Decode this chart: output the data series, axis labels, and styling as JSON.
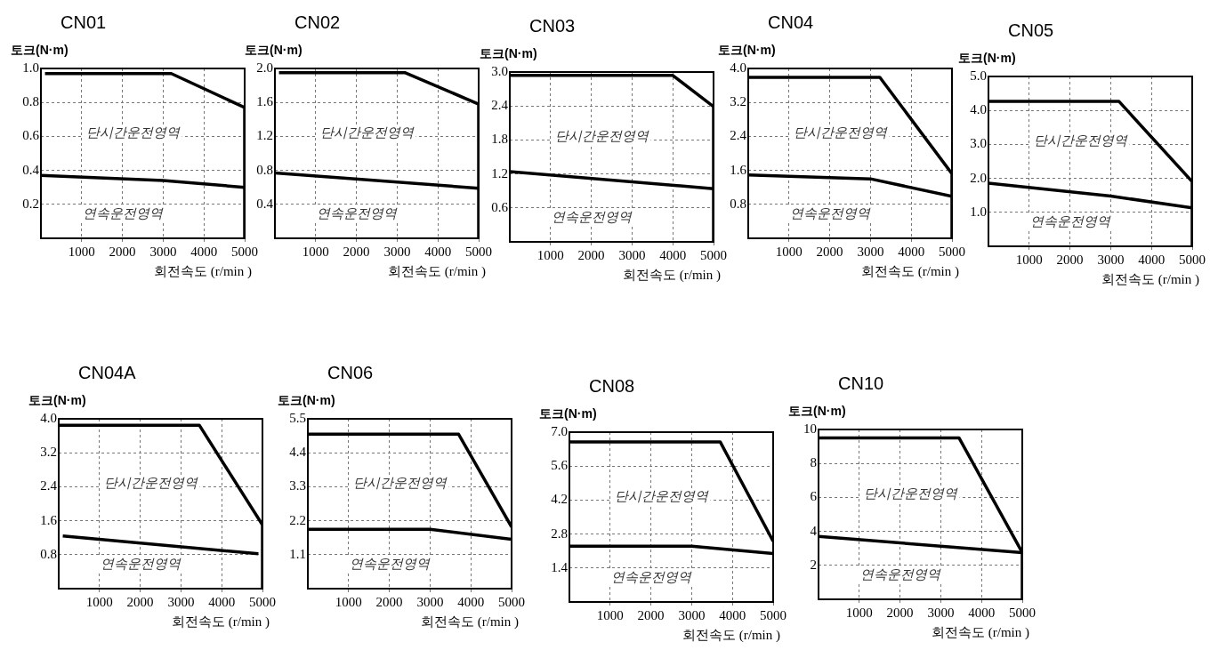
{
  "chart_data": [
    {
      "type": "line",
      "title": "CN01",
      "ylabel": "토크(N·m)",
      "xlabel": "회전속도 (r/min )",
      "xlim": [
        0,
        5000
      ],
      "xticks": [
        1000,
        2000,
        3000,
        4000,
        5000
      ],
      "ylim": [
        0,
        1.0
      ],
      "yticks": [
        {
          "value": 0.2,
          "label": "0.2"
        },
        {
          "value": 0.4,
          "label": "0.4"
        },
        {
          "value": 0.6,
          "label": "0.6"
        },
        {
          "value": 0.8,
          "label": "0.8"
        },
        {
          "value": 1.0,
          "label": "1.0"
        }
      ],
      "grid": true,
      "annotations": [
        "단시간운전영역",
        "연속운전영역"
      ],
      "series": [
        {
          "color": "#000000",
          "x": [
            100,
            3200,
            5000,
            5000
          ],
          "values": [
            0.97,
            0.97,
            0.77,
            0
          ]
        },
        {
          "color": "#000000",
          "x": [
            0,
            3000,
            5000
          ],
          "values": [
            0.37,
            0.34,
            0.3
          ]
        }
      ]
    },
    {
      "type": "line",
      "title": "CN02",
      "ylabel": "토크(N·m)",
      "xlabel": "회전속도 (r/min )",
      "xlim": [
        0,
        5000
      ],
      "xticks": [
        1000,
        2000,
        3000,
        4000,
        5000
      ],
      "ylim": [
        0,
        2.0
      ],
      "yticks": [
        {
          "value": 0.4,
          "label": "0.4"
        },
        {
          "value": 0.8,
          "label": "0.8"
        },
        {
          "value": 1.2,
          "label": "1.2"
        },
        {
          "value": 1.6,
          "label": "1.6"
        },
        {
          "value": 2.0,
          "label": "2.0"
        }
      ],
      "grid": true,
      "annotations": [
        "단시간운전영역",
        "연속운전영역"
      ],
      "series": [
        {
          "color": "#000000",
          "x": [
            100,
            3200,
            5000,
            5000
          ],
          "values": [
            1.95,
            1.95,
            1.58,
            0
          ]
        },
        {
          "color": "#000000",
          "x": [
            0,
            5000
          ],
          "values": [
            0.77,
            0.59
          ]
        }
      ]
    },
    {
      "type": "line",
      "title": "CN03",
      "ylabel": "토크(N·m)",
      "xlabel": "회전속도 (r/min )",
      "xlim": [
        0,
        5000
      ],
      "xticks": [
        1000,
        2000,
        3000,
        4000,
        5000
      ],
      "ylim": [
        0,
        3.0
      ],
      "yticks": [
        {
          "value": 0.6,
          "label": "0.6"
        },
        {
          "value": 1.2,
          "label": "1.2"
        },
        {
          "value": 1.8,
          "label": "1.8"
        },
        {
          "value": 2.4,
          "label": "2.4"
        },
        {
          "value": 3.0,
          "label": "3.0"
        }
      ],
      "grid": true,
      "annotations": [
        "단시간운전영역",
        "연속운전영역"
      ],
      "series": [
        {
          "color": "#000000",
          "x": [
            0,
            4000,
            5000,
            5000
          ],
          "values": [
            2.94,
            2.94,
            2.39,
            0
          ]
        },
        {
          "color": "#000000",
          "x": [
            0,
            5000
          ],
          "values": [
            1.24,
            0.94
          ]
        }
      ]
    },
    {
      "type": "line",
      "title": "CN04",
      "ylabel": "토크(N·m)",
      "xlabel": "회전속도 (r/min )",
      "xlim": [
        0,
        5000
      ],
      "xticks": [
        1000,
        2000,
        3000,
        4000,
        5000
      ],
      "ylim": [
        0,
        4.0
      ],
      "yticks": [
        {
          "value": 0.8,
          "label": "0.8"
        },
        {
          "value": 1.6,
          "label": "1.6"
        },
        {
          "value": 2.4,
          "label": "2.4"
        },
        {
          "value": 3.2,
          "label": "3.2"
        },
        {
          "value": 4.0,
          "label": "4.0"
        }
      ],
      "grid": true,
      "annotations": [
        "단시간운전영역",
        "연속운전영역"
      ],
      "series": [
        {
          "color": "#000000",
          "x": [
            0,
            3230,
            5000,
            5000
          ],
          "values": [
            3.79,
            3.79,
            1.52,
            0
          ]
        },
        {
          "color": "#000000",
          "x": [
            0,
            3000,
            5000
          ],
          "values": [
            1.49,
            1.4,
            0.99
          ]
        }
      ]
    },
    {
      "type": "line",
      "title": "CN05",
      "ylabel": "토크(N·m)",
      "xlabel": "회전속도 (r/min )",
      "xlim": [
        0,
        5000
      ],
      "xticks": [
        1000,
        2000,
        3000,
        4000,
        5000
      ],
      "ylim": [
        0,
        5.0
      ],
      "yticks": [
        {
          "value": 1.0,
          "label": "1.0"
        },
        {
          "value": 2.0,
          "label": "2.0"
        },
        {
          "value": 3.0,
          "label": "3.0"
        },
        {
          "value": 4.0,
          "label": "4.0"
        },
        {
          "value": 5.0,
          "label": "5.0"
        }
      ],
      "grid": true,
      "annotations": [
        "단시간운전영역",
        "연속운전영역"
      ],
      "series": [
        {
          "color": "#000000",
          "x": [
            0,
            3200,
            5000,
            5000
          ],
          "values": [
            4.27,
            4.27,
            1.9,
            0
          ]
        },
        {
          "color": "#000000",
          "x": [
            0,
            3000,
            5000
          ],
          "values": [
            1.86,
            1.48,
            1.13
          ]
        }
      ]
    },
    {
      "type": "line",
      "title": "CN04A",
      "ylabel": "토크(N·m)",
      "xlabel": "회전속도 (r/min )",
      "xlim": [
        0,
        5000
      ],
      "xticks": [
        1000,
        2000,
        3000,
        4000,
        5000
      ],
      "ylim": [
        0,
        4.0
      ],
      "yticks": [
        {
          "value": 0.8,
          "label": "0.8"
        },
        {
          "value": 1.6,
          "label": "1.6"
        },
        {
          "value": 2.4,
          "label": "2.4"
        },
        {
          "value": 3.2,
          "label": "3.2"
        },
        {
          "value": 4.0,
          "label": "4.0"
        }
      ],
      "grid": true,
      "annotations": [
        "단시간운전영역",
        "연속운전영역"
      ],
      "series": [
        {
          "color": "#000000",
          "x": [
            0,
            3450,
            5000,
            5000
          ],
          "values": [
            3.85,
            3.85,
            1.5,
            0
          ]
        },
        {
          "color": "#000000",
          "x": [
            100,
            4900
          ],
          "values": [
            1.24,
            0.82
          ]
        }
      ]
    },
    {
      "type": "line",
      "title": "CN06",
      "ylabel": "토크(N·m)",
      "xlabel": "회전속도 (r/min )",
      "xlim": [
        0,
        5000
      ],
      "xticks": [
        1000,
        2000,
        3000,
        4000,
        5000
      ],
      "ylim": [
        0,
        5.5
      ],
      "yticks": [
        {
          "value": 1.1,
          "label": "1.1"
        },
        {
          "value": 2.2,
          "label": "2.2"
        },
        {
          "value": 3.3,
          "label": "3.3"
        },
        {
          "value": 4.4,
          "label": "4.4"
        },
        {
          "value": 5.5,
          "label": "5.5"
        }
      ],
      "grid": true,
      "annotations": [
        "단시간운전영역",
        "연속운전영역"
      ],
      "series": [
        {
          "color": "#000000",
          "x": [
            0,
            3700,
            5000
          ],
          "values": [
            5.0,
            5.0,
            2.0
          ]
        },
        {
          "color": "#000000",
          "x": [
            0,
            3000,
            5000
          ],
          "values": [
            1.92,
            1.92,
            1.6
          ]
        }
      ]
    },
    {
      "type": "line",
      "title": "CN08",
      "ylabel": "토크(N·m)",
      "xlabel": "회전속도 (r/min )",
      "xlim": [
        0,
        5000
      ],
      "xticks": [
        1000,
        2000,
        3000,
        4000,
        5000
      ],
      "ylim": [
        0,
        7.0
      ],
      "yticks": [
        {
          "value": 1.4,
          "label": "1.4"
        },
        {
          "value": 2.8,
          "label": "2.8"
        },
        {
          "value": 4.2,
          "label": "4.2"
        },
        {
          "value": 5.6,
          "label": "5.6"
        },
        {
          "value": 7.0,
          "label": "7.0"
        }
      ],
      "grid": true,
      "annotations": [
        "단시간운전영역",
        "연속운전영역"
      ],
      "series": [
        {
          "color": "#000000",
          "x": [
            0,
            3700,
            5000
          ],
          "values": [
            6.6,
            6.6,
            2.5
          ]
        },
        {
          "color": "#000000",
          "x": [
            0,
            3000,
            5000
          ],
          "values": [
            2.3,
            2.3,
            2.0
          ]
        }
      ]
    },
    {
      "type": "line",
      "title": "CN10",
      "ylabel": "토크(N·m)",
      "xlabel": "회전속도 (r/min )",
      "xlim": [
        0,
        5000
      ],
      "xticks": [
        1000,
        2000,
        3000,
        4000,
        5000
      ],
      "ylim": [
        0,
        10
      ],
      "yticks": [
        2,
        4,
        6,
        8,
        10
      ],
      "grid": true,
      "annotations": [
        "단시간운전영역",
        "연속운전영역"
      ],
      "series": [
        {
          "color": "#000000",
          "x": [
            0,
            3450,
            5000,
            5000
          ],
          "values": [
            9.5,
            9.5,
            2.75,
            0
          ]
        },
        {
          "color": "#000000",
          "x": [
            0,
            5000
          ],
          "values": [
            3.7,
            2.75
          ]
        }
      ]
    }
  ]
}
